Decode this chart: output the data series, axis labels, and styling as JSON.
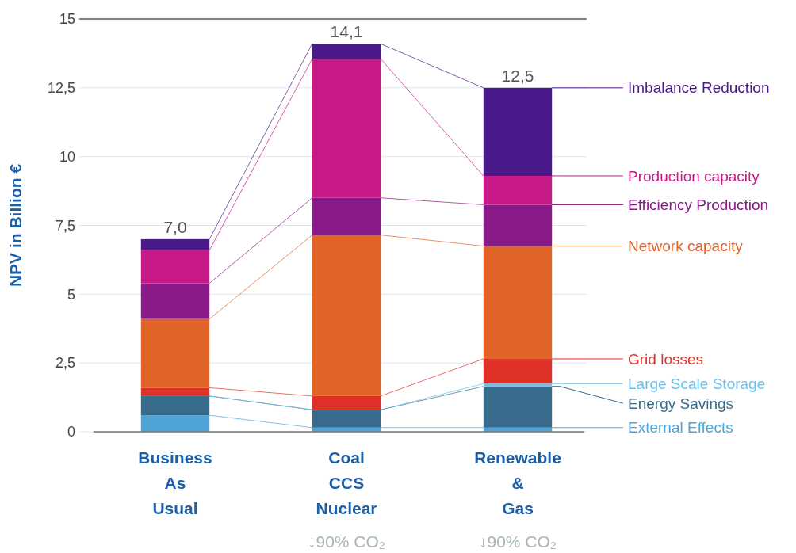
{
  "chart_data": {
    "type": "bar",
    "stacked": true,
    "ylabel": "NPV in Billion €",
    "categories": [
      "Business As Usual",
      "Coal CCS Nuclear",
      "Renewable & Gas"
    ],
    "series": [
      {
        "name": "External Effects",
        "color": "#4fa3d6",
        "values": [
          0.6,
          0.15,
          0.15
        ]
      },
      {
        "name": "Energy Savings",
        "color": "#386b8c",
        "values": [
          0.7,
          0.65,
          1.5
        ]
      },
      {
        "name": "Large Scale Storage",
        "color": "#6cc0ec",
        "values": [
          0,
          0,
          0.1
        ]
      },
      {
        "name": "Grid losses",
        "color": "#e0302a",
        "values": [
          0.3,
          0.5,
          0.9
        ]
      },
      {
        "name": "Network capacity",
        "color": "#e06328",
        "values": [
          2.5,
          5.85,
          4.1
        ]
      },
      {
        "name": "Efficiency Production",
        "color": "#8a1a88",
        "values": [
          1.3,
          1.35,
          1.5
        ]
      },
      {
        "name": "Production capacity",
        "color": "#c71a88",
        "values": [
          1.2,
          5.05,
          1.05
        ]
      },
      {
        "name": "Imbalance Reduction",
        "color": "#4a1a8a",
        "values": [
          0.4,
          0.55,
          3.2
        ]
      }
    ],
    "totals": [
      "7,0",
      "14,1",
      "12,5"
    ],
    "ylim": [
      0,
      15
    ],
    "yticks": [
      0,
      {
        "value": 2.5,
        "label": "2,5"
      },
      5,
      {
        "value": 7.5,
        "label": "7,5"
      },
      10,
      {
        "value": 12.5,
        "label": "12,5"
      },
      15
    ],
    "grid": "y",
    "legend": "right",
    "annotations": [
      "↓90% CO₂",
      "↓90% CO₂"
    ]
  }
}
